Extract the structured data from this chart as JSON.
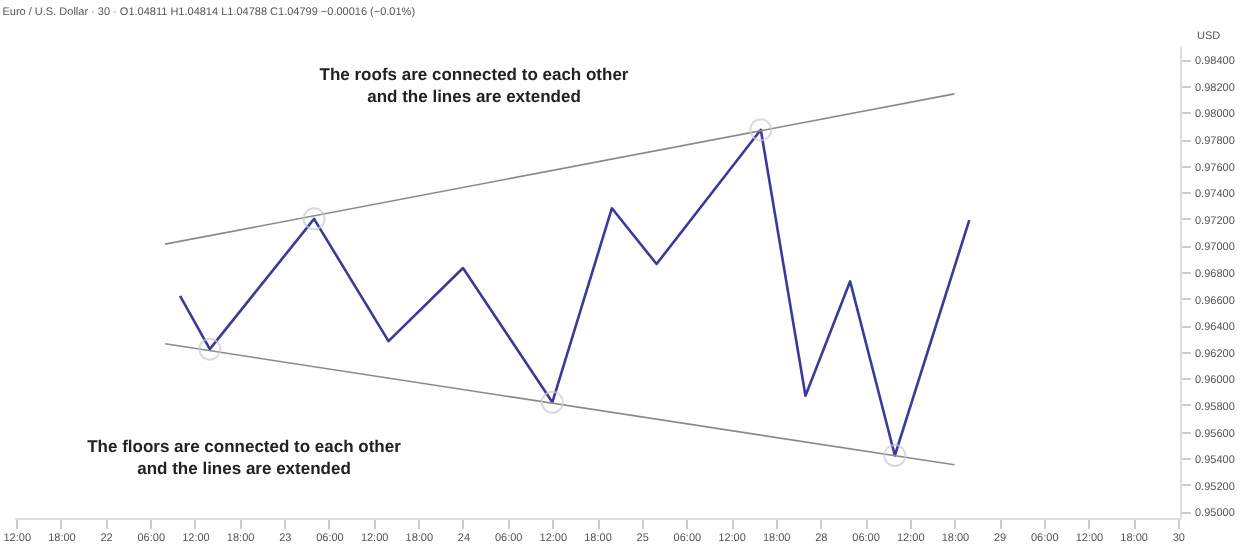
{
  "chart_data": {
    "type": "line",
    "title": "Euro / U.S. Dollar · 30 · O1.04811 H1.04814 L1.04788 C1.04799 −0.00016 (−0.01%)",
    "ylabel": "USD",
    "annotations": [
      "The roofs are connected to each other\nand the lines are extended",
      "The floors are connected to each other\nand the lines are extended"
    ],
    "categories": [
      "12:00",
      null,
      null,
      "18:00",
      null,
      null,
      "22",
      null,
      null,
      "06:00",
      null,
      null,
      "12:00",
      null,
      null,
      "18:00",
      null,
      null,
      "23",
      null,
      null,
      "06:00",
      null,
      null,
      "12:00",
      null,
      null,
      "18:00",
      null,
      null,
      "24",
      null,
      null,
      "06:00",
      null,
      null,
      "12:00",
      null,
      null,
      "18:00",
      null,
      null,
      "25",
      null,
      null,
      "06:00",
      null,
      null,
      "12:00",
      null,
      null,
      "18:00",
      null,
      null,
      "28",
      null,
      null,
      "06:00",
      null,
      null,
      "12:00",
      null,
      null,
      "18:00",
      null,
      null,
      "29",
      null,
      null,
      "06:00",
      null,
      null,
      "12:00",
      null,
      null,
      "18:00",
      null,
      null,
      "30"
    ],
    "series": [
      {
        "color": "#3b3a96",
        "values": [
          null,
          null,
          null,
          null,
          null,
          null,
          null,
          null,
          null,
          null,
          null,
          0.9662,
          null,
          0.9622,
          null,
          null,
          null,
          null,
          null,
          null,
          0.972,
          null,
          null,
          null,
          null,
          0.9628,
          null,
          null,
          null,
          null,
          0.9683,
          null,
          null,
          null,
          null,
          null,
          0.9582,
          null,
          null,
          null,
          0.9728,
          null,
          null,
          0.9686,
          null,
          null,
          null,
          null,
          null,
          null,
          0.9787,
          null,
          null,
          0.9587,
          null,
          null,
          0.9673,
          null,
          null,
          0.9542,
          null,
          null,
          null,
          null,
          0.9719,
          null,
          null,
          null,
          null,
          null,
          null,
          null,
          null,
          null,
          null,
          null,
          null,
          null,
          null
        ]
      },
      {
        "color": "#8a8a8a",
        "values": [
          null,
          null,
          null,
          null,
          null,
          null,
          null,
          null,
          null,
          null,
          0.9701,
          null,
          null,
          null,
          null,
          null,
          null,
          null,
          null,
          null,
          null,
          null,
          null,
          null,
          null,
          null,
          null,
          null,
          null,
          null,
          null,
          null,
          null,
          null,
          null,
          null,
          null,
          null,
          null,
          null,
          null,
          null,
          null,
          null,
          null,
          null,
          null,
          null,
          null,
          null,
          null,
          null,
          null,
          null,
          null,
          null,
          null,
          null,
          null,
          null,
          null,
          null,
          null,
          0.9814,
          null,
          null,
          null,
          null,
          null,
          null,
          null,
          null,
          null,
          null,
          null,
          null,
          null,
          null,
          null
        ]
      },
      {
        "color": "#8a8a8a",
        "values": [
          null,
          null,
          null,
          null,
          null,
          null,
          null,
          null,
          null,
          null,
          0.9626,
          null,
          null,
          null,
          null,
          null,
          null,
          null,
          null,
          null,
          null,
          null,
          null,
          null,
          null,
          null,
          null,
          null,
          null,
          null,
          null,
          null,
          null,
          null,
          null,
          null,
          null,
          null,
          null,
          null,
          null,
          null,
          null,
          null,
          null,
          null,
          null,
          null,
          null,
          null,
          null,
          null,
          null,
          null,
          null,
          null,
          null,
          null,
          null,
          null,
          null,
          null,
          null,
          0.9535,
          null,
          null,
          null,
          null,
          null,
          null,
          null,
          null,
          null,
          null,
          null,
          null,
          null,
          null,
          null
        ]
      },
      {
        "type": "scatter",
        "marker": "circle",
        "color": "#c9c9d9",
        "values": [
          null,
          null,
          null,
          null,
          null,
          null,
          null,
          null,
          null,
          null,
          null,
          null,
          null,
          0.9622,
          null,
          null,
          null,
          null,
          null,
          null,
          0.972,
          null,
          null,
          null,
          null,
          null,
          null,
          null,
          null,
          null,
          null,
          null,
          null,
          null,
          null,
          null,
          0.9582,
          null,
          null,
          null,
          null,
          null,
          null,
          null,
          null,
          null,
          null,
          null,
          null,
          null,
          0.9787,
          null,
          null,
          null,
          null,
          null,
          null,
          null,
          null,
          0.9542,
          null,
          null,
          null,
          null,
          null,
          null,
          null,
          null,
          null,
          null,
          null,
          null,
          null,
          null,
          null,
          null,
          null,
          null,
          null
        ]
      }
    ],
    "ylim": [
      0.9495,
      0.985
    ],
    "yticks": [
      {
        "value": 0.95,
        "label": "0.95000"
      },
      {
        "value": 0.952,
        "label": "0.95200"
      },
      {
        "value": 0.954,
        "label": "0.95400"
      },
      {
        "value": 0.956,
        "label": "0.95600"
      },
      {
        "value": 0.958,
        "label": "0.95800"
      },
      {
        "value": 0.96,
        "label": "0.96000"
      },
      {
        "value": 0.962,
        "label": "0.96200"
      },
      {
        "value": 0.964,
        "label": "0.96400"
      },
      {
        "value": 0.966,
        "label": "0.96600"
      },
      {
        "value": 0.968,
        "label": "0.96800"
      },
      {
        "value": 0.97,
        "label": "0.97000"
      },
      {
        "value": 0.972,
        "label": "0.97200"
      },
      {
        "value": 0.974,
        "label": "0.97400"
      },
      {
        "value": 0.976,
        "label": "0.97600"
      },
      {
        "value": 0.978,
        "label": "0.97800"
      },
      {
        "value": 0.98,
        "label": "0.98000"
      },
      {
        "value": 0.982,
        "label": "0.98200"
      },
      {
        "value": 0.984,
        "label": "0.98400"
      }
    ],
    "grid": false
  }
}
